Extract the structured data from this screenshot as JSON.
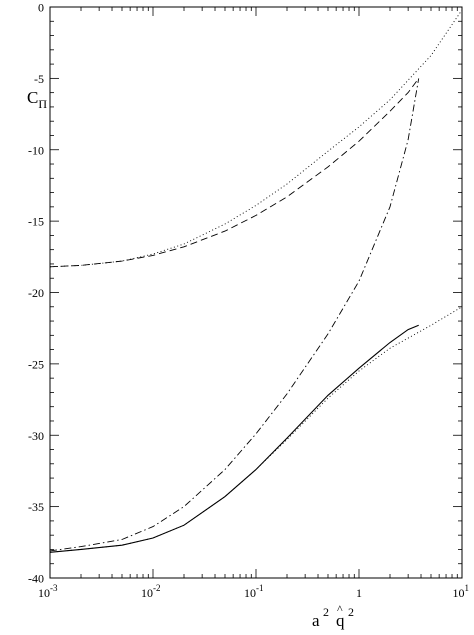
{
  "chart_data": {
    "type": "line",
    "xlabel_base": "a",
    "xlabel_exp": "2",
    "xlabel_hat": "^",
    "xlabel_var": "q",
    "xlabel_exp2": "2",
    "ylabel_main": "C",
    "ylabel_sub": "Π",
    "xscale": "log",
    "xlim": [
      0.001,
      10
    ],
    "ylim": [
      -40,
      0
    ],
    "grid": false,
    "x_ticks": [
      {
        "value": 0.001,
        "base": "10",
        "exp": "-3"
      },
      {
        "value": 0.01,
        "base": "10",
        "exp": "-2"
      },
      {
        "value": 0.1,
        "base": "10",
        "exp": "-1"
      },
      {
        "value": 1,
        "base": "1",
        "exp": ""
      },
      {
        "value": 10,
        "base": "10",
        "exp": "1"
      }
    ],
    "y_ticks": [
      {
        "value": 0,
        "label": "0"
      },
      {
        "value": -5,
        "label": "-5"
      },
      {
        "value": -10,
        "label": "-10"
      },
      {
        "value": -15,
        "label": "-15"
      },
      {
        "value": -20,
        "label": "-20"
      },
      {
        "value": -25,
        "label": "-25"
      },
      {
        "value": -30,
        "label": "-30"
      },
      {
        "value": -35,
        "label": "-35"
      },
      {
        "value": -40,
        "label": "-40"
      }
    ],
    "series": [
      {
        "style": "dotted",
        "x": [
          0.001,
          0.002,
          0.005,
          0.01,
          0.02,
          0.05,
          0.1,
          0.2,
          0.5,
          1,
          2,
          5,
          10
        ],
        "y": [
          -18.2,
          -18.1,
          -17.8,
          -17.3,
          -16.6,
          -15.2,
          -13.9,
          -12.4,
          -10.1,
          -8.4,
          -6.5,
          -3.4,
          -0.2
        ]
      },
      {
        "style": "dashed",
        "x": [
          0.001,
          0.002,
          0.005,
          0.01,
          0.02,
          0.05,
          0.1,
          0.2,
          0.5,
          1,
          2,
          3,
          3.8
        ],
        "y": [
          -18.2,
          -18.1,
          -17.8,
          -17.4,
          -16.8,
          -15.7,
          -14.6,
          -13.3,
          -11.2,
          -9.4,
          -7.3,
          -6.0,
          -5.0
        ]
      },
      {
        "style": "dashdot",
        "x": [
          0.001,
          0.002,
          0.005,
          0.01,
          0.02,
          0.05,
          0.1,
          0.2,
          0.5,
          1,
          2,
          3,
          3.8
        ],
        "y": [
          -38.1,
          -37.8,
          -37.3,
          -36.4,
          -35.0,
          -32.4,
          -29.9,
          -27.1,
          -22.9,
          -19.2,
          -14.0,
          -9.3,
          -5.0
        ]
      },
      {
        "style": "solid",
        "x": [
          0.001,
          0.002,
          0.005,
          0.01,
          0.02,
          0.05,
          0.1,
          0.2,
          0.5,
          1,
          2,
          3,
          3.8
        ],
        "y": [
          -38.2,
          -38.0,
          -37.7,
          -37.2,
          -36.3,
          -34.3,
          -32.4,
          -30.2,
          -27.2,
          -25.3,
          -23.5,
          -22.6,
          -22.3
        ]
      },
      {
        "style": "dotted",
        "x": [
          0.001,
          0.002,
          0.005,
          0.01,
          0.02,
          0.05,
          0.1,
          0.2,
          0.5,
          1,
          2,
          5,
          10
        ],
        "y": [
          -38.2,
          -38.0,
          -37.7,
          -37.2,
          -36.3,
          -34.3,
          -32.4,
          -30.3,
          -27.4,
          -25.5,
          -23.9,
          -22.3,
          -21.0
        ]
      }
    ]
  }
}
